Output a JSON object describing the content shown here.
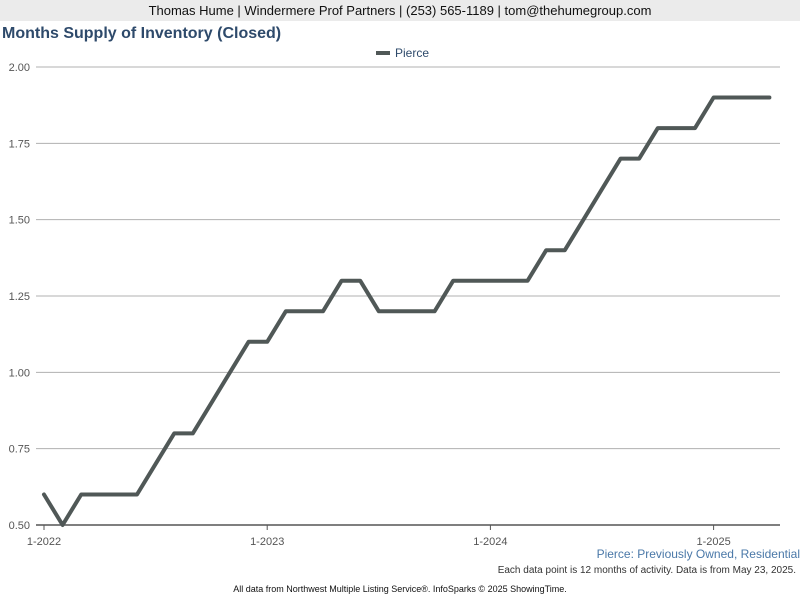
{
  "header": {
    "contact": "Thomas Hume | Windermere Prof Partners | (253) 565-1189 | tom@thehumegroup.com"
  },
  "colors": {
    "header_bg": "#ebebeb",
    "title": "#2e4a6b",
    "series_line": "#505857",
    "subtitle": "#4a78a8",
    "gridline": "#b0b0b0"
  },
  "chart_data": {
    "type": "line",
    "title": "Months Supply of Inventory (Closed)",
    "xlabel": "",
    "ylabel": "",
    "x_ticks": [
      "1-2022",
      "1-2023",
      "1-2024",
      "1-2025"
    ],
    "y_ticks": [
      "0.50",
      "0.75",
      "1.00",
      "1.25",
      "1.50",
      "1.75",
      "2.00"
    ],
    "ylim": [
      0.5,
      2.0
    ],
    "grid": true,
    "legend_placement": "top-center",
    "series": [
      {
        "name": "Pierce",
        "x": [
          "2022-01",
          "2022-02",
          "2022-03",
          "2022-04",
          "2022-05",
          "2022-06",
          "2022-07",
          "2022-08",
          "2022-09",
          "2022-10",
          "2022-11",
          "2022-12",
          "2023-01",
          "2023-02",
          "2023-03",
          "2023-04",
          "2023-05",
          "2023-06",
          "2023-07",
          "2023-08",
          "2023-09",
          "2023-10",
          "2023-11",
          "2023-12",
          "2024-01",
          "2024-02",
          "2024-03",
          "2024-04",
          "2024-05",
          "2024-06",
          "2024-07",
          "2024-08",
          "2024-09",
          "2024-10",
          "2024-11",
          "2024-12",
          "2025-01",
          "2025-02",
          "2025-03",
          "2025-04"
        ],
        "values": [
          0.6,
          0.5,
          0.6,
          0.6,
          0.6,
          0.6,
          0.7,
          0.8,
          0.8,
          0.9,
          1.0,
          1.1,
          1.1,
          1.2,
          1.2,
          1.2,
          1.3,
          1.3,
          1.2,
          1.2,
          1.2,
          1.2,
          1.3,
          1.3,
          1.3,
          1.3,
          1.3,
          1.4,
          1.4,
          1.5,
          1.6,
          1.7,
          1.7,
          1.8,
          1.8,
          1.8,
          1.9,
          1.9,
          1.9,
          1.9
        ]
      }
    ]
  },
  "subtitle": "Pierce: Previously Owned, Residential",
  "note": "Each data point is 12 months of activity. Data is from May 23, 2025.",
  "footer": "All data from Northwest Multiple Listing Service®. InfoSparks © 2025 ShowingTime."
}
